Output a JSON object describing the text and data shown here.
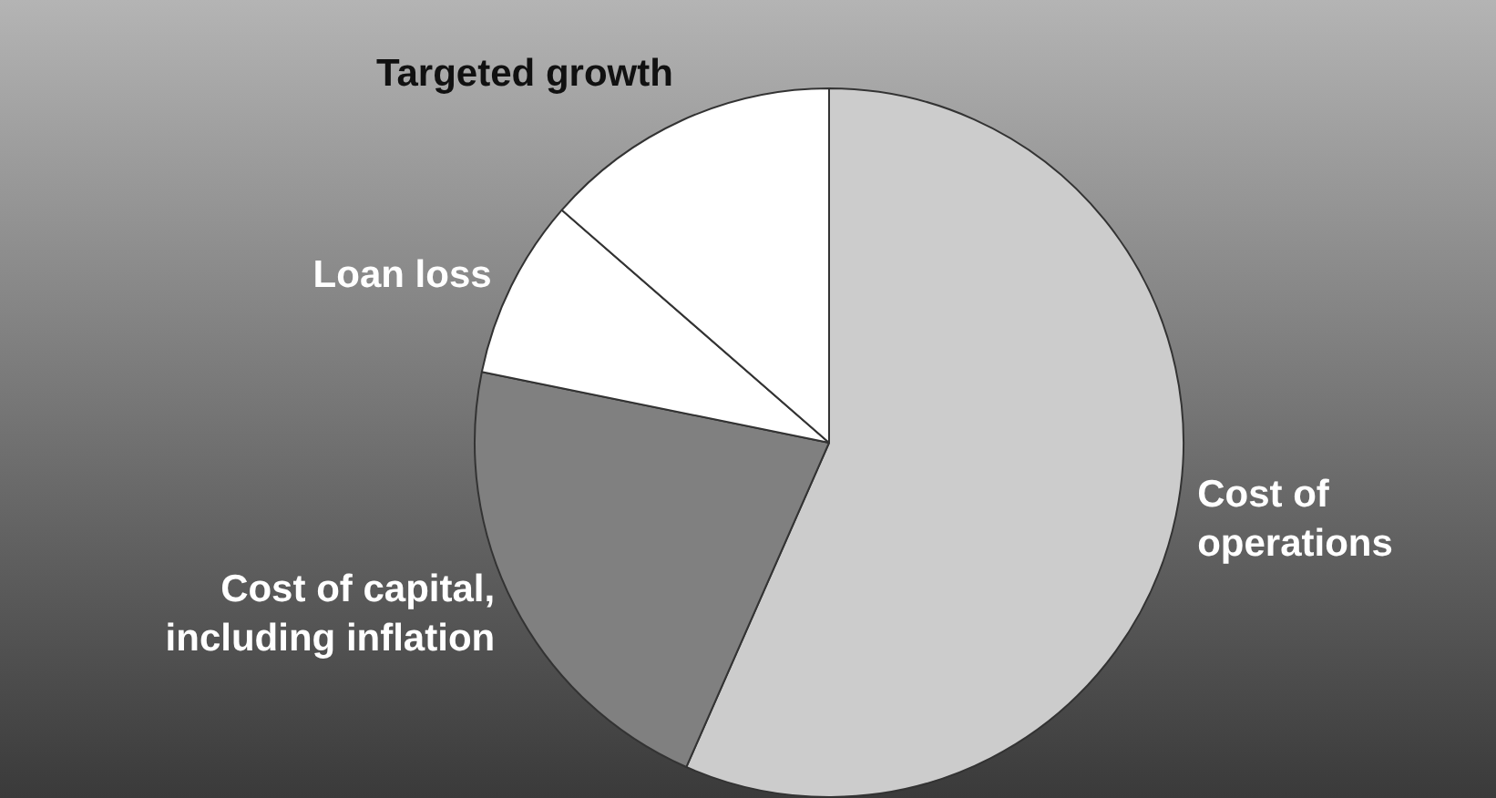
{
  "chart_data": {
    "type": "pie",
    "categories": [
      "Cost of operations",
      "Cost of capital, including inflation",
      "Loan loss",
      "Targeted growth"
    ],
    "values": [
      56.6,
      21.6,
      8.2,
      13.6
    ],
    "colors": [
      "#cccccc",
      "#808080",
      "#ffffff",
      "#ffffff"
    ],
    "legend": false
  }
}
